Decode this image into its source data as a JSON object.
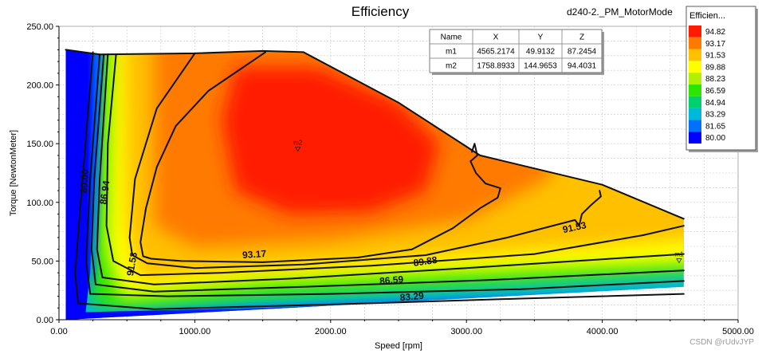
{
  "chart_data": {
    "type": "heatmap",
    "title": "Efficiency",
    "subtitle": "d240-2._PM_MotorMode",
    "xlabel": "Speed [rpm]",
    "ylabel": "Torque [NewtonMeter]",
    "xlim": [
      0,
      5000
    ],
    "ylim": [
      0,
      250
    ],
    "x_ticks": [
      "0.00",
      "1000.00",
      "2000.00",
      "3000.00",
      "4000.00",
      "5000.00"
    ],
    "y_ticks": [
      "0.00",
      "50.00",
      "100.00",
      "150.00",
      "200.00",
      "250.00"
    ],
    "grid": true,
    "legend": {
      "title": "Efficien...",
      "position": "right",
      "levels": [
        "94.82",
        "93.17",
        "91.53",
        "89.88",
        "88.23",
        "86.59",
        "84.94",
        "83.29",
        "81.65",
        "80.00"
      ],
      "colors": [
        "#ff1a00",
        "#ff7a00",
        "#ffc000",
        "#ffff00",
        "#b0f000",
        "#2ce600",
        "#00d070",
        "#00b8d8",
        "#0070ff",
        "#0000ff"
      ]
    },
    "contour_labels": [
      "93.17",
      "91.53",
      "91.53",
      "89.88",
      "86.59",
      "83.29",
      "80.00",
      "86.94"
    ],
    "envelope": {
      "torque_limit": [
        [
          50,
          230
        ],
        [
          300,
          226
        ],
        [
          1000,
          227
        ],
        [
          1500,
          229
        ],
        [
          1800,
          228
        ],
        [
          2500,
          185
        ],
        [
          3100,
          140
        ],
        [
          4000,
          115
        ],
        [
          4600,
          86
        ]
      ],
      "min_torque": [
        [
          50,
          0
        ],
        [
          4600,
          28
        ]
      ]
    },
    "markers": [
      {
        "name": "m1",
        "x": 4565.2174,
        "y": 49.9132,
        "z": 87.2454
      },
      {
        "name": "m2",
        "x": 1758.8933,
        "y": 144.9653,
        "z": 94.4031
      }
    ],
    "marker_table": {
      "headers": [
        "Name",
        "X",
        "Y",
        "Z"
      ],
      "rows": [
        [
          "m1",
          "4565.2174",
          "49.9132",
          "87.2454"
        ],
        [
          "m2",
          "1758.8933",
          "144.9653",
          "94.4031"
        ]
      ]
    }
  },
  "watermark": "CSDN @rUdvJYP"
}
